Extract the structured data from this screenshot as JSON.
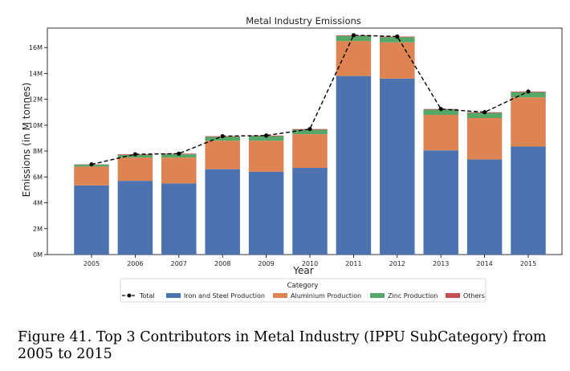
{
  "chart_data": {
    "type": "bar",
    "stacked": true,
    "title": "Metal Industry Emissions",
    "xlabel": "Year",
    "ylabel": "Emissions (in M tonnes)",
    "ylim": [
      0,
      17.5
    ],
    "yticks": [
      0,
      2,
      4,
      6,
      8,
      10,
      12,
      14,
      16
    ],
    "ytick_labels": [
      "0M",
      "2M",
      "4M",
      "6M",
      "8M",
      "10M",
      "12M",
      "14M",
      "16M"
    ],
    "categories": [
      "2005",
      "2006",
      "2007",
      "2008",
      "2009",
      "2010",
      "2011",
      "2012",
      "2013",
      "2014",
      "2015"
    ],
    "series": [
      {
        "name": "Iron and Steel Production",
        "color": "#4c72b0",
        "values": [
          5.35,
          5.7,
          5.5,
          6.6,
          6.4,
          6.7,
          13.8,
          13.6,
          8.05,
          7.35,
          8.35
        ]
      },
      {
        "name": "Aluminium Production",
        "color": "#dd8452",
        "values": [
          1.45,
          1.8,
          2.0,
          2.2,
          2.4,
          2.6,
          2.7,
          2.8,
          2.75,
          3.2,
          3.8
        ]
      },
      {
        "name": "Zinc Production",
        "color": "#55a868",
        "values": [
          0.15,
          0.2,
          0.25,
          0.3,
          0.35,
          0.35,
          0.4,
          0.4,
          0.4,
          0.4,
          0.4
        ]
      },
      {
        "name": "Others",
        "color": "#c44e52",
        "values": [
          0.02,
          0.05,
          0.05,
          0.05,
          0.05,
          0.05,
          0.05,
          0.05,
          0.05,
          0.05,
          0.05
        ]
      }
    ],
    "total": {
      "name": "Total",
      "color": "#000000",
      "values": [
        6.97,
        7.75,
        7.8,
        9.15,
        9.2,
        9.7,
        16.95,
        16.85,
        11.25,
        11.0,
        12.6
      ]
    },
    "grid": false,
    "legend": {
      "title": "Category",
      "placement": "bottom-center"
    }
  },
  "caption": "Figure 41.  Top 3 Contributors in Metal Industry (IPPU SubCategory) from 2005 to 2015"
}
